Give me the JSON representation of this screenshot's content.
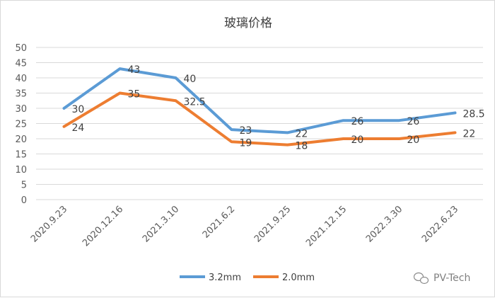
{
  "chart_data": {
    "type": "line",
    "title": "玻璃价格",
    "categories": [
      "2020.9.23",
      "2020.12.16",
      "2021.3.10",
      "2021.6.2",
      "2021.9.25",
      "2021.12.15",
      "2022.3.30",
      "2022.6.23"
    ],
    "series": [
      {
        "name": "3.2mm",
        "color": "#5b9bd5",
        "values": [
          30,
          43,
          40,
          23,
          22,
          26,
          26,
          28.5
        ]
      },
      {
        "name": "2.0mm",
        "color": "#ed7d31",
        "values": [
          24,
          35,
          32.5,
          19,
          18,
          20,
          20,
          22
        ]
      }
    ],
    "ylim": [
      0,
      50
    ],
    "yticks": [
      0,
      5,
      10,
      15,
      20,
      25,
      30,
      35,
      40,
      45,
      50
    ],
    "grid": true,
    "legend": "bottom",
    "data_labels": true
  },
  "watermark": {
    "text": "PV-Tech",
    "icon": "wechat-icon"
  }
}
